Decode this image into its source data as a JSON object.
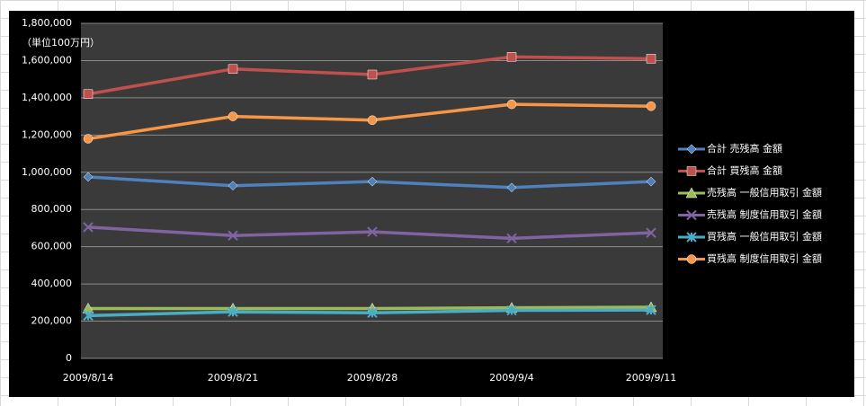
{
  "chart_data": {
    "type": "line",
    "annotation": "（単位100万円）",
    "categories": [
      "2009/8/14",
      "2009/8/21",
      "2009/8/28",
      "2009/9/4",
      "2009/9/11"
    ],
    "ylim": [
      0,
      1800000
    ],
    "yticks": [
      0,
      {
        "value": 200000,
        "label": "200,000"
      },
      {
        "value": 400000,
        "label": "400,000"
      },
      {
        "value": 600000,
        "label": "600,000"
      },
      {
        "value": 800000,
        "label": "800,000"
      },
      {
        "value": 1000000,
        "label": "1,000,000"
      },
      {
        "value": 1200000,
        "label": "1,200,000"
      },
      {
        "value": 1400000,
        "label": "1,400,000"
      },
      {
        "value": 1600000,
        "label": "1,600,000"
      },
      {
        "value": 1800000,
        "label": "1,800,000"
      }
    ],
    "grid": true,
    "legend": "right",
    "series": [
      {
        "name": "合計 売残高 金額",
        "color": "#4f81bd",
        "marker": "diamond",
        "values": [
          975000,
          928000,
          950000,
          918000,
          950000
        ]
      },
      {
        "name": "合計 買残高 金額",
        "color": "#c0504d",
        "marker": "square",
        "values": [
          1420000,
          1555000,
          1525000,
          1620000,
          1610000
        ]
      },
      {
        "name": "売残高 一般信用取引 金額",
        "color": "#9bbb59",
        "marker": "triangle",
        "values": [
          268000,
          268000,
          268000,
          272000,
          275000
        ]
      },
      {
        "name": "売残高 制度信用取引 金額",
        "color": "#8064a2",
        "marker": "x",
        "values": [
          705000,
          660000,
          680000,
          645000,
          675000
        ]
      },
      {
        "name": "買残高 一般信用取引 金額",
        "color": "#4bacc6",
        "marker": "star",
        "values": [
          230000,
          250000,
          245000,
          258000,
          260000
        ]
      },
      {
        "name": "買残高 制度信用取引 金額",
        "color": "#f79646",
        "marker": "circle",
        "values": [
          1180000,
          1300000,
          1280000,
          1365000,
          1355000
        ]
      }
    ]
  }
}
